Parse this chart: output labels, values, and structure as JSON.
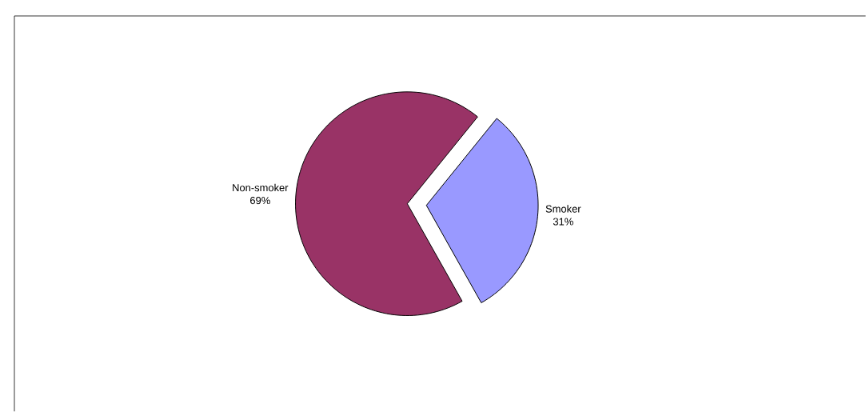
{
  "chart_data": {
    "type": "pie",
    "categories": [
      "Non-smoker",
      "Smoker"
    ],
    "values": [
      69,
      31
    ],
    "colors": [
      "#993366",
      "#9999ff"
    ],
    "value_labels": [
      "69%",
      "31%"
    ]
  }
}
